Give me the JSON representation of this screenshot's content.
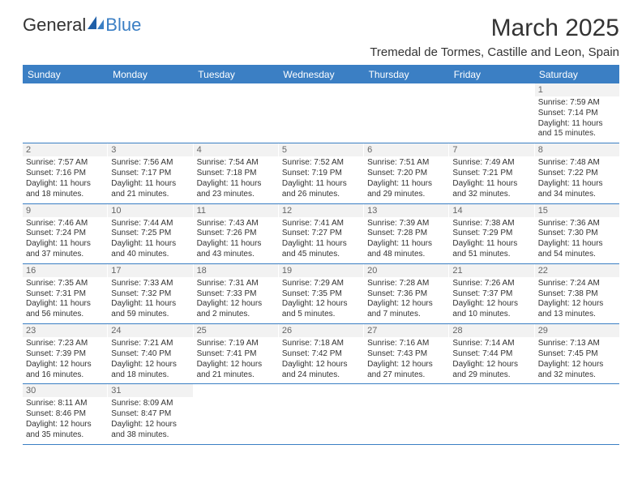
{
  "logo": {
    "general": "General",
    "blue": "Blue"
  },
  "title": "March 2025",
  "location": "Tremedal de Tormes, Castille and Leon, Spain",
  "colors": {
    "header_bg": "#3b7fc4",
    "header_text": "#ffffff",
    "daynum_bg": "#f2f2f2",
    "border": "#3b7fc4",
    "text": "#333333"
  },
  "dayHeaders": [
    "Sunday",
    "Monday",
    "Tuesday",
    "Wednesday",
    "Thursday",
    "Friday",
    "Saturday"
  ],
  "weeks": [
    [
      {
        "n": "",
        "sunrise": "",
        "sunset": "",
        "day": ""
      },
      {
        "n": "",
        "sunrise": "",
        "sunset": "",
        "day": ""
      },
      {
        "n": "",
        "sunrise": "",
        "sunset": "",
        "day": ""
      },
      {
        "n": "",
        "sunrise": "",
        "sunset": "",
        "day": ""
      },
      {
        "n": "",
        "sunrise": "",
        "sunset": "",
        "day": ""
      },
      {
        "n": "",
        "sunrise": "",
        "sunset": "",
        "day": ""
      },
      {
        "n": "1",
        "sunrise": "Sunrise: 7:59 AM",
        "sunset": "Sunset: 7:14 PM",
        "day": "Daylight: 11 hours and 15 minutes."
      }
    ],
    [
      {
        "n": "2",
        "sunrise": "Sunrise: 7:57 AM",
        "sunset": "Sunset: 7:16 PM",
        "day": "Daylight: 11 hours and 18 minutes."
      },
      {
        "n": "3",
        "sunrise": "Sunrise: 7:56 AM",
        "sunset": "Sunset: 7:17 PM",
        "day": "Daylight: 11 hours and 21 minutes."
      },
      {
        "n": "4",
        "sunrise": "Sunrise: 7:54 AM",
        "sunset": "Sunset: 7:18 PM",
        "day": "Daylight: 11 hours and 23 minutes."
      },
      {
        "n": "5",
        "sunrise": "Sunrise: 7:52 AM",
        "sunset": "Sunset: 7:19 PM",
        "day": "Daylight: 11 hours and 26 minutes."
      },
      {
        "n": "6",
        "sunrise": "Sunrise: 7:51 AM",
        "sunset": "Sunset: 7:20 PM",
        "day": "Daylight: 11 hours and 29 minutes."
      },
      {
        "n": "7",
        "sunrise": "Sunrise: 7:49 AM",
        "sunset": "Sunset: 7:21 PM",
        "day": "Daylight: 11 hours and 32 minutes."
      },
      {
        "n": "8",
        "sunrise": "Sunrise: 7:48 AM",
        "sunset": "Sunset: 7:22 PM",
        "day": "Daylight: 11 hours and 34 minutes."
      }
    ],
    [
      {
        "n": "9",
        "sunrise": "Sunrise: 7:46 AM",
        "sunset": "Sunset: 7:24 PM",
        "day": "Daylight: 11 hours and 37 minutes."
      },
      {
        "n": "10",
        "sunrise": "Sunrise: 7:44 AM",
        "sunset": "Sunset: 7:25 PM",
        "day": "Daylight: 11 hours and 40 minutes."
      },
      {
        "n": "11",
        "sunrise": "Sunrise: 7:43 AM",
        "sunset": "Sunset: 7:26 PM",
        "day": "Daylight: 11 hours and 43 minutes."
      },
      {
        "n": "12",
        "sunrise": "Sunrise: 7:41 AM",
        "sunset": "Sunset: 7:27 PM",
        "day": "Daylight: 11 hours and 45 minutes."
      },
      {
        "n": "13",
        "sunrise": "Sunrise: 7:39 AM",
        "sunset": "Sunset: 7:28 PM",
        "day": "Daylight: 11 hours and 48 minutes."
      },
      {
        "n": "14",
        "sunrise": "Sunrise: 7:38 AM",
        "sunset": "Sunset: 7:29 PM",
        "day": "Daylight: 11 hours and 51 minutes."
      },
      {
        "n": "15",
        "sunrise": "Sunrise: 7:36 AM",
        "sunset": "Sunset: 7:30 PM",
        "day": "Daylight: 11 hours and 54 minutes."
      }
    ],
    [
      {
        "n": "16",
        "sunrise": "Sunrise: 7:35 AM",
        "sunset": "Sunset: 7:31 PM",
        "day": "Daylight: 11 hours and 56 minutes."
      },
      {
        "n": "17",
        "sunrise": "Sunrise: 7:33 AM",
        "sunset": "Sunset: 7:32 PM",
        "day": "Daylight: 11 hours and 59 minutes."
      },
      {
        "n": "18",
        "sunrise": "Sunrise: 7:31 AM",
        "sunset": "Sunset: 7:33 PM",
        "day": "Daylight: 12 hours and 2 minutes."
      },
      {
        "n": "19",
        "sunrise": "Sunrise: 7:29 AM",
        "sunset": "Sunset: 7:35 PM",
        "day": "Daylight: 12 hours and 5 minutes."
      },
      {
        "n": "20",
        "sunrise": "Sunrise: 7:28 AM",
        "sunset": "Sunset: 7:36 PM",
        "day": "Daylight: 12 hours and 7 minutes."
      },
      {
        "n": "21",
        "sunrise": "Sunrise: 7:26 AM",
        "sunset": "Sunset: 7:37 PM",
        "day": "Daylight: 12 hours and 10 minutes."
      },
      {
        "n": "22",
        "sunrise": "Sunrise: 7:24 AM",
        "sunset": "Sunset: 7:38 PM",
        "day": "Daylight: 12 hours and 13 minutes."
      }
    ],
    [
      {
        "n": "23",
        "sunrise": "Sunrise: 7:23 AM",
        "sunset": "Sunset: 7:39 PM",
        "day": "Daylight: 12 hours and 16 minutes."
      },
      {
        "n": "24",
        "sunrise": "Sunrise: 7:21 AM",
        "sunset": "Sunset: 7:40 PM",
        "day": "Daylight: 12 hours and 18 minutes."
      },
      {
        "n": "25",
        "sunrise": "Sunrise: 7:19 AM",
        "sunset": "Sunset: 7:41 PM",
        "day": "Daylight: 12 hours and 21 minutes."
      },
      {
        "n": "26",
        "sunrise": "Sunrise: 7:18 AM",
        "sunset": "Sunset: 7:42 PM",
        "day": "Daylight: 12 hours and 24 minutes."
      },
      {
        "n": "27",
        "sunrise": "Sunrise: 7:16 AM",
        "sunset": "Sunset: 7:43 PM",
        "day": "Daylight: 12 hours and 27 minutes."
      },
      {
        "n": "28",
        "sunrise": "Sunrise: 7:14 AM",
        "sunset": "Sunset: 7:44 PM",
        "day": "Daylight: 12 hours and 29 minutes."
      },
      {
        "n": "29",
        "sunrise": "Sunrise: 7:13 AM",
        "sunset": "Sunset: 7:45 PM",
        "day": "Daylight: 12 hours and 32 minutes."
      }
    ],
    [
      {
        "n": "30",
        "sunrise": "Sunrise: 8:11 AM",
        "sunset": "Sunset: 8:46 PM",
        "day": "Daylight: 12 hours and 35 minutes."
      },
      {
        "n": "31",
        "sunrise": "Sunrise: 8:09 AM",
        "sunset": "Sunset: 8:47 PM",
        "day": "Daylight: 12 hours and 38 minutes."
      },
      {
        "n": "",
        "sunrise": "",
        "sunset": "",
        "day": ""
      },
      {
        "n": "",
        "sunrise": "",
        "sunset": "",
        "day": ""
      },
      {
        "n": "",
        "sunrise": "",
        "sunset": "",
        "day": ""
      },
      {
        "n": "",
        "sunrise": "",
        "sunset": "",
        "day": ""
      },
      {
        "n": "",
        "sunrise": "",
        "sunset": "",
        "day": ""
      }
    ]
  ]
}
